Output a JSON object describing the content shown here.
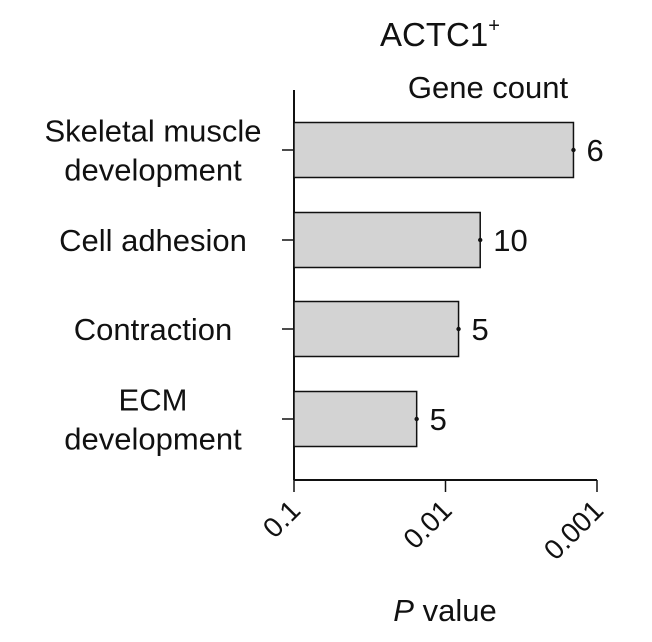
{
  "chart_data": {
    "type": "bar",
    "orientation": "horizontal",
    "title": "ACTC1",
    "title_superscript": "+",
    "subtitle": "Gene count",
    "categories": [
      [
        "Skeletal muscle",
        "development"
      ],
      [
        "Cell adhesion"
      ],
      [
        "Contraction"
      ],
      [
        "ECM",
        "development"
      ]
    ],
    "values": [
      0.00143,
      0.0059,
      0.0082,
      0.0155
    ],
    "gene_counts": [
      "6",
      "10",
      "5",
      "5"
    ],
    "x_scale": "log",
    "x_reversed": true,
    "xlim": [
      0.1,
      0.001
    ],
    "x_ticks": [
      "0.1",
      "0.01",
      "0.001"
    ],
    "xlabel_italic": "P",
    "xlabel_rest": " value",
    "ylabel": "",
    "grid": false,
    "bar_color": "#d3d3d3",
    "bar_edge_color": "#111111"
  }
}
